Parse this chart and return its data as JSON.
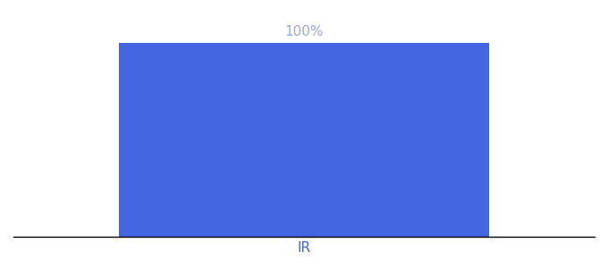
{
  "categories": [
    "IR"
  ],
  "values": [
    100
  ],
  "bar_color": "#4466e0",
  "label_color": "#9aabcc",
  "xlabel_color": "#4466cc",
  "background_color": "#ffffff",
  "ylim": [
    0,
    115
  ],
  "bar_width": 0.7,
  "xlim": [
    -0.55,
    0.55
  ],
  "label_fontsize": 11,
  "xlabel_fontsize": 11
}
